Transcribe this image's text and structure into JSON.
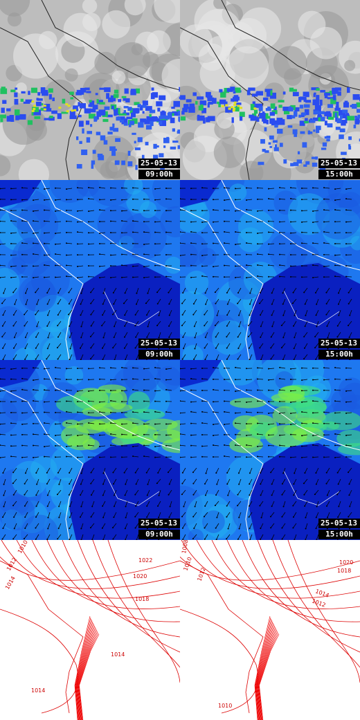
{
  "panels": [
    {
      "date": "25-05-13",
      "time": "09:00h"
    },
    {
      "date": "25-05-13",
      "time": "15:00h"
    },
    {
      "date": "25-05-13",
      "time": "09:00h"
    },
    {
      "date": "25-05-13",
      "time": "15:00h"
    },
    {
      "date": "25-05-13",
      "time": "09:00h"
    },
    {
      "date": "25-05-13",
      "time": "15:00h"
    }
  ],
  "contour_labels": {
    "left": [
      "1010",
      "1012",
      "1014",
      "1022",
      "1020",
      "1018",
      "1014",
      "1014"
    ],
    "right": [
      "1008",
      "1010",
      "1012",
      "1020",
      "1018",
      "1014",
      "1012",
      "1010"
    ]
  }
}
